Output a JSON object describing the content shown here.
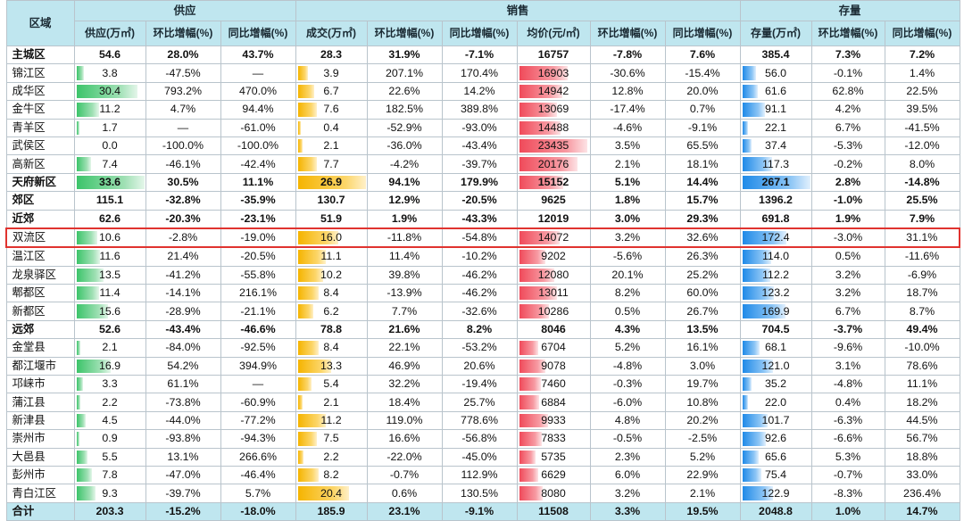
{
  "headers": {
    "region": "区域",
    "groups": [
      "供应",
      "销售",
      "存量"
    ],
    "columns": [
      "供应(万㎡)",
      "环比增幅(%)",
      "同比增幅(%)",
      "成交(万㎡)",
      "环比增幅(%)",
      "同比增幅(%)",
      "均价(元/㎡)",
      "环比增幅(%)",
      "同比增幅(%)",
      "存量(万㎡)",
      "环比增幅(%)",
      "同比增幅(%)"
    ]
  },
  "bar_max": {
    "supply": 33.6,
    "deal": 26.9,
    "price": 23435,
    "stock": 267.1
  },
  "rows": [
    {
      "name": "主城区",
      "bold": true,
      "bars": false,
      "supply": "54.6",
      "s_mom": "28.0%",
      "s_yoy": "43.7%",
      "deal": "28.3",
      "d_mom": "31.9%",
      "d_yoy": "-7.1%",
      "price": "16757",
      "p_mom": "-7.8%",
      "p_yoy": "7.6%",
      "stock": "385.4",
      "k_mom": "7.3%",
      "k_yoy": "7.2%"
    },
    {
      "name": "锦江区",
      "bold": false,
      "bars": true,
      "supply": "3.8",
      "s_mom": "-47.5%",
      "s_yoy": "—",
      "deal": "3.9",
      "d_mom": "207.1%",
      "d_yoy": "170.4%",
      "price": "16903",
      "p_mom": "-30.6%",
      "p_yoy": "-15.4%",
      "stock": "56.0",
      "k_mom": "-0.1%",
      "k_yoy": "1.4%"
    },
    {
      "name": "成华区",
      "bold": false,
      "bars": true,
      "supply": "30.4",
      "s_mom": "793.2%",
      "s_yoy": "470.0%",
      "deal": "6.7",
      "d_mom": "22.6%",
      "d_yoy": "14.2%",
      "price": "14942",
      "p_mom": "12.8%",
      "p_yoy": "20.0%",
      "stock": "61.6",
      "k_mom": "62.8%",
      "k_yoy": "22.5%"
    },
    {
      "name": "金牛区",
      "bold": false,
      "bars": true,
      "supply": "11.2",
      "s_mom": "4.7%",
      "s_yoy": "94.4%",
      "deal": "7.6",
      "d_mom": "182.5%",
      "d_yoy": "389.8%",
      "price": "13069",
      "p_mom": "-17.4%",
      "p_yoy": "0.7%",
      "stock": "91.1",
      "k_mom": "4.2%",
      "k_yoy": "39.5%"
    },
    {
      "name": "青羊区",
      "bold": false,
      "bars": true,
      "supply": "1.7",
      "s_mom": "—",
      "s_yoy": "-61.0%",
      "deal": "0.4",
      "d_mom": "-52.9%",
      "d_yoy": "-93.0%",
      "price": "14488",
      "p_mom": "-4.6%",
      "p_yoy": "-9.1%",
      "stock": "22.1",
      "k_mom": "6.7%",
      "k_yoy": "-41.5%"
    },
    {
      "name": "武侯区",
      "bold": false,
      "bars": true,
      "supply": "0.0",
      "s_mom": "-100.0%",
      "s_yoy": "-100.0%",
      "deal": "2.1",
      "d_mom": "-36.0%",
      "d_yoy": "-43.4%",
      "price": "23435",
      "p_mom": "3.5%",
      "p_yoy": "65.5%",
      "stock": "37.4",
      "k_mom": "-5.3%",
      "k_yoy": "-12.0%"
    },
    {
      "name": "高新区",
      "bold": false,
      "bars": true,
      "supply": "7.4",
      "s_mom": "-46.1%",
      "s_yoy": "-42.4%",
      "deal": "7.7",
      "d_mom": "-4.2%",
      "d_yoy": "-39.7%",
      "price": "20176",
      "p_mom": "2.1%",
      "p_yoy": "18.1%",
      "stock": "117.3",
      "k_mom": "-0.2%",
      "k_yoy": "8.0%"
    },
    {
      "name": "天府新区",
      "bold": true,
      "bars": true,
      "supply": "33.6",
      "s_mom": "30.5%",
      "s_yoy": "11.1%",
      "deal": "26.9",
      "d_mom": "94.1%",
      "d_yoy": "179.9%",
      "price": "15152",
      "p_mom": "5.1%",
      "p_yoy": "14.4%",
      "stock": "267.1",
      "k_mom": "2.8%",
      "k_yoy": "-14.8%"
    },
    {
      "name": "郊区",
      "bold": true,
      "bars": false,
      "supply": "115.1",
      "s_mom": "-32.8%",
      "s_yoy": "-35.9%",
      "deal": "130.7",
      "d_mom": "12.9%",
      "d_yoy": "-20.5%",
      "price": "9625",
      "p_mom": "1.8%",
      "p_yoy": "15.7%",
      "stock": "1396.2",
      "k_mom": "-1.0%",
      "k_yoy": "25.5%"
    },
    {
      "name": "近郊",
      "bold": true,
      "bars": false,
      "supply": "62.6",
      "s_mom": "-20.3%",
      "s_yoy": "-23.1%",
      "deal": "51.9",
      "d_mom": "1.9%",
      "d_yoy": "-43.3%",
      "price": "12019",
      "p_mom": "3.0%",
      "p_yoy": "29.3%",
      "stock": "691.8",
      "k_mom": "1.9%",
      "k_yoy": "7.9%"
    },
    {
      "name": "双流区",
      "bold": false,
      "bars": true,
      "highlight": true,
      "supply": "10.6",
      "s_mom": "-2.8%",
      "s_yoy": "-19.0%",
      "deal": "16.0",
      "d_mom": "-11.8%",
      "d_yoy": "-54.8%",
      "price": "14072",
      "p_mom": "3.2%",
      "p_yoy": "32.6%",
      "stock": "172.4",
      "k_mom": "-3.0%",
      "k_yoy": "31.1%"
    },
    {
      "name": "温江区",
      "bold": false,
      "bars": true,
      "supply": "11.6",
      "s_mom": "21.4%",
      "s_yoy": "-20.5%",
      "deal": "11.1",
      "d_mom": "11.4%",
      "d_yoy": "-10.2%",
      "price": "9202",
      "p_mom": "-5.6%",
      "p_yoy": "26.3%",
      "stock": "114.0",
      "k_mom": "0.5%",
      "k_yoy": "-11.6%"
    },
    {
      "name": "龙泉驿区",
      "bold": false,
      "bars": true,
      "supply": "13.5",
      "s_mom": "-41.2%",
      "s_yoy": "-55.8%",
      "deal": "10.2",
      "d_mom": "39.8%",
      "d_yoy": "-46.2%",
      "price": "12080",
      "p_mom": "20.1%",
      "p_yoy": "25.2%",
      "stock": "112.2",
      "k_mom": "3.2%",
      "k_yoy": "-6.9%"
    },
    {
      "name": "郫都区",
      "bold": false,
      "bars": true,
      "supply": "11.4",
      "s_mom": "-14.1%",
      "s_yoy": "216.1%",
      "deal": "8.4",
      "d_mom": "-13.9%",
      "d_yoy": "-46.2%",
      "price": "13011",
      "p_mom": "8.2%",
      "p_yoy": "60.0%",
      "stock": "123.2",
      "k_mom": "3.2%",
      "k_yoy": "18.7%"
    },
    {
      "name": "新都区",
      "bold": false,
      "bars": true,
      "supply": "15.6",
      "s_mom": "-28.9%",
      "s_yoy": "-21.1%",
      "deal": "6.2",
      "d_mom": "7.7%",
      "d_yoy": "-32.6%",
      "price": "10286",
      "p_mom": "0.5%",
      "p_yoy": "26.7%",
      "stock": "169.9",
      "k_mom": "6.7%",
      "k_yoy": "8.7%"
    },
    {
      "name": "远郊",
      "bold": true,
      "bars": false,
      "supply": "52.6",
      "s_mom": "-43.4%",
      "s_yoy": "-46.6%",
      "deal": "78.8",
      "d_mom": "21.6%",
      "d_yoy": "8.2%",
      "price": "8046",
      "p_mom": "4.3%",
      "p_yoy": "13.5%",
      "stock": "704.5",
      "k_mom": "-3.7%",
      "k_yoy": "49.4%"
    },
    {
      "name": "金堂县",
      "bold": false,
      "bars": true,
      "supply": "2.1",
      "s_mom": "-84.0%",
      "s_yoy": "-92.5%",
      "deal": "8.4",
      "d_mom": "22.1%",
      "d_yoy": "-53.2%",
      "price": "6704",
      "p_mom": "5.2%",
      "p_yoy": "16.1%",
      "stock": "68.1",
      "k_mom": "-9.6%",
      "k_yoy": "-10.0%"
    },
    {
      "name": "都江堰市",
      "bold": false,
      "bars": true,
      "supply": "16.9",
      "s_mom": "54.2%",
      "s_yoy": "394.9%",
      "deal": "13.3",
      "d_mom": "46.9%",
      "d_yoy": "20.6%",
      "price": "9078",
      "p_mom": "-4.8%",
      "p_yoy": "3.0%",
      "stock": "121.0",
      "k_mom": "3.1%",
      "k_yoy": "78.6%"
    },
    {
      "name": "邛崃市",
      "bold": false,
      "bars": true,
      "supply": "3.3",
      "s_mom": "61.1%",
      "s_yoy": "—",
      "deal": "5.4",
      "d_mom": "32.2%",
      "d_yoy": "-19.4%",
      "price": "7460",
      "p_mom": "-0.3%",
      "p_yoy": "19.7%",
      "stock": "35.2",
      "k_mom": "-4.8%",
      "k_yoy": "11.1%"
    },
    {
      "name": "蒲江县",
      "bold": false,
      "bars": true,
      "supply": "2.2",
      "s_mom": "-73.8%",
      "s_yoy": "-60.9%",
      "deal": "2.1",
      "d_mom": "18.4%",
      "d_yoy": "25.7%",
      "price": "6884",
      "p_mom": "-6.0%",
      "p_yoy": "10.8%",
      "stock": "22.0",
      "k_mom": "0.4%",
      "k_yoy": "18.2%"
    },
    {
      "name": "新津县",
      "bold": false,
      "bars": true,
      "supply": "4.5",
      "s_mom": "-44.0%",
      "s_yoy": "-77.2%",
      "deal": "11.2",
      "d_mom": "119.0%",
      "d_yoy": "778.6%",
      "price": "9933",
      "p_mom": "4.8%",
      "p_yoy": "20.2%",
      "stock": "101.7",
      "k_mom": "-6.3%",
      "k_yoy": "44.5%"
    },
    {
      "name": "崇州市",
      "bold": false,
      "bars": true,
      "supply": "0.9",
      "s_mom": "-93.8%",
      "s_yoy": "-94.3%",
      "deal": "7.5",
      "d_mom": "16.6%",
      "d_yoy": "-56.8%",
      "price": "7833",
      "p_mom": "-0.5%",
      "p_yoy": "-2.5%",
      "stock": "92.6",
      "k_mom": "-6.6%",
      "k_yoy": "56.7%"
    },
    {
      "name": "大邑县",
      "bold": false,
      "bars": true,
      "supply": "5.5",
      "s_mom": "13.1%",
      "s_yoy": "266.6%",
      "deal": "2.2",
      "d_mom": "-22.0%",
      "d_yoy": "-45.0%",
      "price": "5735",
      "p_mom": "2.3%",
      "p_yoy": "5.2%",
      "stock": "65.6",
      "k_mom": "5.3%",
      "k_yoy": "18.8%"
    },
    {
      "name": "彭州市",
      "bold": false,
      "bars": true,
      "supply": "7.8",
      "s_mom": "-47.0%",
      "s_yoy": "-46.4%",
      "deal": "8.2",
      "d_mom": "-0.7%",
      "d_yoy": "112.9%",
      "price": "6629",
      "p_mom": "6.0%",
      "p_yoy": "22.9%",
      "stock": "75.4",
      "k_mom": "-0.7%",
      "k_yoy": "33.0%"
    },
    {
      "name": "青白江区",
      "bold": false,
      "bars": true,
      "supply": "9.3",
      "s_mom": "-39.7%",
      "s_yoy": "5.7%",
      "deal": "20.4",
      "d_mom": "0.6%",
      "d_yoy": "130.5%",
      "price": "8080",
      "p_mom": "3.2%",
      "p_yoy": "2.1%",
      "stock": "122.9",
      "k_mom": "-8.3%",
      "k_yoy": "236.4%"
    }
  ],
  "total": {
    "name": "合计",
    "supply": "203.3",
    "s_mom": "-15.2%",
    "s_yoy": "-18.0%",
    "deal": "185.9",
    "d_mom": "23.1%",
    "d_yoy": "-9.1%",
    "price": "11508",
    "p_mom": "3.3%",
    "p_yoy": "19.5%",
    "stock": "2048.8",
    "k_mom": "1.0%",
    "k_yoy": "14.7%"
  }
}
